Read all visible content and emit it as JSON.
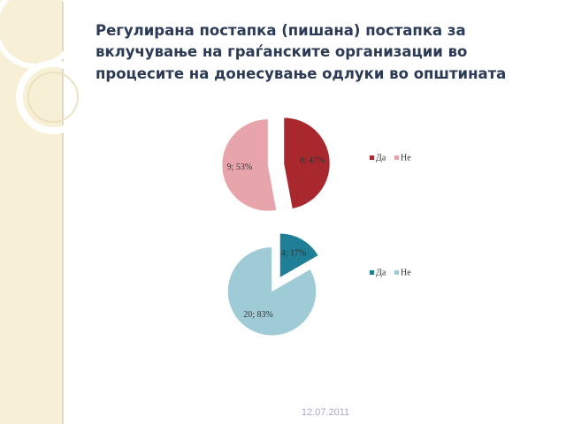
{
  "header": {
    "title": [
      "Регулирана постапка (пишана) постапка за",
      "вклучување на граѓанските организации во",
      "процесите на донесување одлуки во општината"
    ]
  },
  "footer": {
    "date": "12.07.2011"
  },
  "chart_data": [
    {
      "type": "pie",
      "categories": [
        "Да",
        "Не"
      ],
      "values": [
        8,
        9
      ],
      "value_labels": [
        "8; 47%",
        "9; 53%"
      ],
      "colors": [
        "#a8282e",
        "#e8a4ab"
      ]
    },
    {
      "type": "pie",
      "categories": [
        "Да",
        "Не"
      ],
      "values": [
        4,
        20
      ],
      "value_labels": [
        "4; 17%",
        "20; 83%"
      ],
      "colors": [
        "#1e7f96",
        "#9fcbd6"
      ]
    }
  ]
}
